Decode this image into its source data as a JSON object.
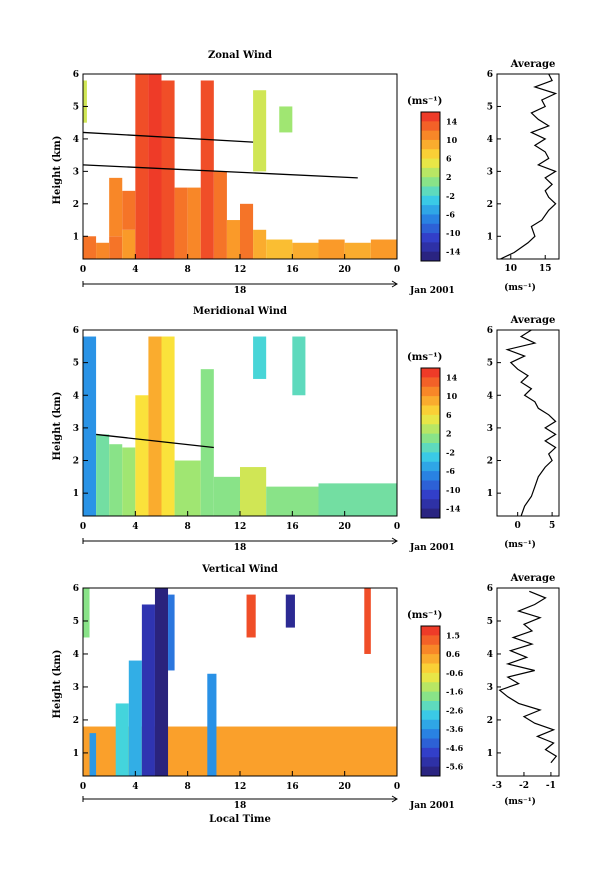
{
  "panels": [
    {
      "key": "zonal",
      "title": "Zonal Wind",
      "ylabel": "Height (km)",
      "colorbar": {
        "unit": "(ms⁻¹)",
        "ticks": [
          "14",
          "10",
          "6",
          "2",
          "-2",
          "-6",
          "-10",
          "-14"
        ],
        "range": [
          -16,
          16
        ]
      },
      "xticks": [
        "0",
        "4",
        "8",
        "12",
        "16",
        "20",
        "0"
      ],
      "day_label": "18",
      "date_label": "Jan 2001",
      "yticks": [
        "1",
        "2",
        "3",
        "4",
        "5",
        "6"
      ],
      "profile": {
        "title": "Average",
        "xlabel": "(ms⁻¹)",
        "xticks": [
          "10",
          "15"
        ],
        "xlim": [
          8,
          17
        ]
      }
    },
    {
      "key": "meridional",
      "title": "Meridional Wind",
      "ylabel": "Height (km)",
      "colorbar": {
        "unit": "(ms⁻¹)",
        "ticks": [
          "14",
          "10",
          "6",
          "2",
          "-2",
          "-6",
          "-10",
          "-14"
        ],
        "range": [
          -16,
          16
        ]
      },
      "xticks": [
        "0",
        "4",
        "8",
        "12",
        "16",
        "20",
        "0"
      ],
      "day_label": "18",
      "date_label": "Jan 2001",
      "yticks": [
        "1",
        "2",
        "3",
        "4",
        "5",
        "6"
      ],
      "profile": {
        "title": "Average",
        "xlabel": "(ms⁻¹)",
        "xticks": [
          "0",
          "5"
        ],
        "xlim": [
          -3,
          6
        ]
      }
    },
    {
      "key": "vertical",
      "title": "Vertical Wind",
      "ylabel": "Height (km)",
      "xlabel": "Local Time",
      "colorbar": {
        "unit": "(ms⁻¹)",
        "ticks": [
          "1.5",
          "0.6",
          "-0.6",
          "-1.6",
          "-2.6",
          "-3.6",
          "-4.6",
          "-5.6"
        ],
        "range": [
          -6.1,
          2.0
        ]
      },
      "xticks": [
        "0",
        "4",
        "8",
        "12",
        "16",
        "20",
        "0"
      ],
      "day_label": "18",
      "date_label": "Jan 2001",
      "yticks": [
        "1",
        "2",
        "3",
        "4",
        "5",
        "6"
      ],
      "profile": {
        "title": "Average",
        "xlabel": "(ms⁻¹)",
        "xticks": [
          "-3",
          "-2",
          "-1"
        ],
        "xlim": [
          -3,
          -0.7
        ]
      }
    }
  ],
  "chart_data": [
    {
      "type": "heatmap",
      "title": "Zonal Wind",
      "ylabel": "Height (km)",
      "ylim": [
        0.3,
        6.0
      ],
      "xlim": [
        0,
        24
      ],
      "x_unit": "hours local time, 18 Jan 2001",
      "colorbar_range": [
        -16,
        16
      ],
      "cells": [
        {
          "x": [
            0,
            1
          ],
          "y": [
            0.3,
            1.0
          ],
          "v": 12
        },
        {
          "x": [
            1,
            2
          ],
          "y": [
            0.3,
            0.8
          ],
          "v": 11
        },
        {
          "x": [
            2,
            3
          ],
          "y": [
            0.3,
            1.0
          ],
          "v": 12
        },
        {
          "x": [
            3,
            4
          ],
          "y": [
            0.3,
            1.2
          ],
          "v": 10
        },
        {
          "x": [
            4,
            5
          ],
          "y": [
            0.3,
            6.0
          ],
          "v": 14
        },
        {
          "x": [
            5,
            6
          ],
          "y": [
            0.3,
            6.0
          ],
          "v": 15
        },
        {
          "x": [
            6,
            7
          ],
          "y": [
            0.3,
            5.8
          ],
          "v": 14
        },
        {
          "x": [
            7,
            8
          ],
          "y": [
            0.3,
            2.5
          ],
          "v": 12
        },
        {
          "x": [
            8,
            9
          ],
          "y": [
            0.3,
            2.5
          ],
          "v": 11
        },
        {
          "x": [
            9,
            10
          ],
          "y": [
            0.3,
            5.8
          ],
          "v": 14
        },
        {
          "x": [
            10,
            11
          ],
          "y": [
            0.3,
            3.0
          ],
          "v": 12
        },
        {
          "x": [
            11,
            12
          ],
          "y": [
            0.3,
            1.5
          ],
          "v": 10
        },
        {
          "x": [
            12,
            13
          ],
          "y": [
            0.3,
            2.0
          ],
          "v": 12
        },
        {
          "x": [
            13,
            14
          ],
          "y": [
            0.3,
            1.2
          ],
          "v": 9
        },
        {
          "x": [
            14,
            16
          ],
          "y": [
            0.3,
            0.9
          ],
          "v": 8
        },
        {
          "x": [
            16,
            18
          ],
          "y": [
            0.3,
            0.8
          ],
          "v": 9
        },
        {
          "x": [
            18,
            20
          ],
          "y": [
            0.3,
            0.9
          ],
          "v": 10
        },
        {
          "x": [
            20,
            22
          ],
          "y": [
            0.3,
            0.8
          ],
          "v": 9
        },
        {
          "x": [
            22,
            24
          ],
          "y": [
            0.3,
            0.9
          ],
          "v": 10
        },
        {
          "x": [
            0,
            0.3
          ],
          "y": [
            4.5,
            5.8
          ],
          "v": 4
        },
        {
          "x": [
            13,
            14
          ],
          "y": [
            3.0,
            5.5
          ],
          "v": 4
        },
        {
          "x": [
            15,
            16
          ],
          "y": [
            4.2,
            5.0
          ],
          "v": 2
        },
        {
          "x": [
            2,
            3
          ],
          "y": [
            1.0,
            2.8
          ],
          "v": 11
        },
        {
          "x": [
            3,
            4
          ],
          "y": [
            1.2,
            2.4
          ],
          "v": 12
        }
      ],
      "lines": [
        {
          "x": [
            0,
            13
          ],
          "y": [
            4.2,
            3.9
          ]
        },
        {
          "x": [
            0,
            21
          ],
          "y": [
            3.2,
            2.8
          ]
        }
      ]
    },
    {
      "type": "line",
      "title": "Average",
      "xlabel": "(ms⁻¹)",
      "xlim": [
        8,
        17
      ],
      "ylim": [
        0.3,
        6.0
      ],
      "height": [
        0.3,
        0.5,
        0.8,
        1.0,
        1.3,
        1.5,
        1.8,
        2.0,
        2.2,
        2.4,
        2.6,
        2.8,
        3.0,
        3.2,
        3.4,
        3.6,
        3.8,
        4.0,
        4.2,
        4.4,
        4.6,
        4.8,
        5.0,
        5.2,
        5.4,
        5.6,
        5.8,
        6.0
      ],
      "values": [
        8.5,
        10.5,
        12.5,
        13.5,
        13.0,
        14.5,
        15.5,
        16.5,
        15.5,
        15.0,
        16.0,
        15.0,
        16.5,
        14.0,
        15.5,
        15.0,
        13.5,
        15.0,
        13.0,
        15.5,
        14.0,
        13.0,
        15.0,
        14.5,
        16.5,
        13.5,
        16.0,
        15.5
      ]
    },
    {
      "type": "heatmap",
      "title": "Meridional Wind",
      "ylabel": "Height (km)",
      "ylim": [
        0.3,
        6.0
      ],
      "xlim": [
        0,
        24
      ],
      "colorbar_range": [
        -16,
        16
      ],
      "cells": [
        {
          "x": [
            0,
            1
          ],
          "y": [
            0.3,
            5.8
          ],
          "v": -6
        },
        {
          "x": [
            1,
            2
          ],
          "y": [
            0.3,
            2.8
          ],
          "v": 0
        },
        {
          "x": [
            2,
            3
          ],
          "y": [
            0.3,
            2.5
          ],
          "v": 1
        },
        {
          "x": [
            3,
            4
          ],
          "y": [
            0.3,
            2.4
          ],
          "v": 2
        },
        {
          "x": [
            4,
            5
          ],
          "y": [
            0.3,
            4.0
          ],
          "v": 6
        },
        {
          "x": [
            5,
            6
          ],
          "y": [
            0.3,
            5.8
          ],
          "v": 9
        },
        {
          "x": [
            6,
            7
          ],
          "y": [
            0.3,
            5.8
          ],
          "v": 6
        },
        {
          "x": [
            7,
            9
          ],
          "y": [
            0.3,
            2.0
          ],
          "v": 2
        },
        {
          "x": [
            9,
            10
          ],
          "y": [
            0.3,
            4.8
          ],
          "v": 1
        },
        {
          "x": [
            10,
            12
          ],
          "y": [
            0.3,
            1.5
          ],
          "v": 1
        },
        {
          "x": [
            12,
            14
          ],
          "y": [
            0.3,
            1.8
          ],
          "v": 4
        },
        {
          "x": [
            14,
            18
          ],
          "y": [
            0.3,
            1.2
          ],
          "v": 1
        },
        {
          "x": [
            18,
            24
          ],
          "y": [
            0.3,
            1.3
          ],
          "v": 0
        },
        {
          "x": [
            13,
            14
          ],
          "y": [
            4.5,
            5.8
          ],
          "v": -2
        },
        {
          "x": [
            16,
            17
          ],
          "y": [
            4.0,
            5.8
          ],
          "v": -1
        }
      ],
      "lines": [
        {
          "x": [
            1,
            10
          ],
          "y": [
            2.8,
            2.4
          ]
        }
      ]
    },
    {
      "type": "line",
      "title": "Average",
      "xlabel": "(ms⁻¹)",
      "xlim": [
        -3,
        6
      ],
      "ylim": [
        0.3,
        6.0
      ],
      "height": [
        0.3,
        0.6,
        0.9,
        1.2,
        1.5,
        1.8,
        2.0,
        2.2,
        2.4,
        2.6,
        2.8,
        3.0,
        3.2,
        3.4,
        3.6,
        3.8,
        4.0,
        4.2,
        4.4,
        4.6,
        4.8,
        5.0,
        5.2,
        5.4,
        5.6,
        5.8,
        6.0
      ],
      "values": [
        0.5,
        1.0,
        2.0,
        2.5,
        3.0,
        4.0,
        5.0,
        4.5,
        5.5,
        4.0,
        5.5,
        4.0,
        5.5,
        4.5,
        3.0,
        2.5,
        1.0,
        2.0,
        0.5,
        1.5,
        0.0,
        -1.0,
        1.0,
        -1.5,
        2.5,
        0.5,
        2.0
      ]
    },
    {
      "type": "heatmap",
      "title": "Vertical Wind",
      "ylabel": "Height (km)",
      "xlabel": "Local Time",
      "ylim": [
        0.3,
        6.0
      ],
      "xlim": [
        0,
        24
      ],
      "colorbar_range": [
        -6.1,
        2.0
      ],
      "cells": [
        {
          "x": [
            0,
            24
          ],
          "y": [
            0.3,
            1.8
          ],
          "v": 0.4
        },
        {
          "x": [
            0.5,
            1
          ],
          "y": [
            0.3,
            1.6
          ],
          "v": -3.5
        },
        {
          "x": [
            2.5,
            3.5
          ],
          "y": [
            0.3,
            2.5
          ],
          "v": -2.6
        },
        {
          "x": [
            3.5,
            4.5
          ],
          "y": [
            0.3,
            3.8
          ],
          "v": -3.2
        },
        {
          "x": [
            4.5,
            5.5
          ],
          "y": [
            0.3,
            5.5
          ],
          "v": -5.2
        },
        {
          "x": [
            5.5,
            6.5
          ],
          "y": [
            0.3,
            6.0
          ],
          "v": -5.9
        },
        {
          "x": [
            6.5,
            7
          ],
          "y": [
            3.5,
            5.8
          ],
          "v": -4.0
        },
        {
          "x": [
            9.5,
            10.2
          ],
          "y": [
            0.3,
            3.4
          ],
          "v": -3.6
        },
        {
          "x": [
            0,
            0.5
          ],
          "y": [
            4.5,
            6.0
          ],
          "v": -1.8
        },
        {
          "x": [
            12.5,
            13.2
          ],
          "y": [
            4.5,
            5.8
          ],
          "v": 1.5
        },
        {
          "x": [
            15.5,
            16.2
          ],
          "y": [
            4.8,
            5.8
          ],
          "v": -5.6
        },
        {
          "x": [
            21.5,
            22
          ],
          "y": [
            4.0,
            6.0
          ],
          "v": 1.5
        }
      ]
    },
    {
      "type": "line",
      "title": "Average",
      "xlabel": "(ms⁻¹)",
      "xlim": [
        -3,
        -0.7
      ],
      "ylim": [
        0.3,
        6.0
      ],
      "height": [
        0.7,
        0.9,
        1.1,
        1.3,
        1.5,
        1.7,
        1.9,
        2.1,
        2.3,
        2.5,
        2.7,
        2.9,
        3.1,
        3.3,
        3.5,
        3.7,
        3.9,
        4.1,
        4.3,
        4.5,
        4.7,
        4.9,
        5.1,
        5.3,
        5.5,
        5.7,
        5.9
      ],
      "values": [
        -1.0,
        -0.8,
        -1.2,
        -0.9,
        -1.5,
        -0.9,
        -1.6,
        -2.0,
        -1.4,
        -2.2,
        -2.6,
        -2.9,
        -2.2,
        -2.6,
        -1.6,
        -2.6,
        -1.9,
        -2.5,
        -1.7,
        -2.4,
        -1.7,
        -2.0,
        -1.4,
        -2.2,
        -1.6,
        -1.2,
        -1.8
      ]
    }
  ]
}
